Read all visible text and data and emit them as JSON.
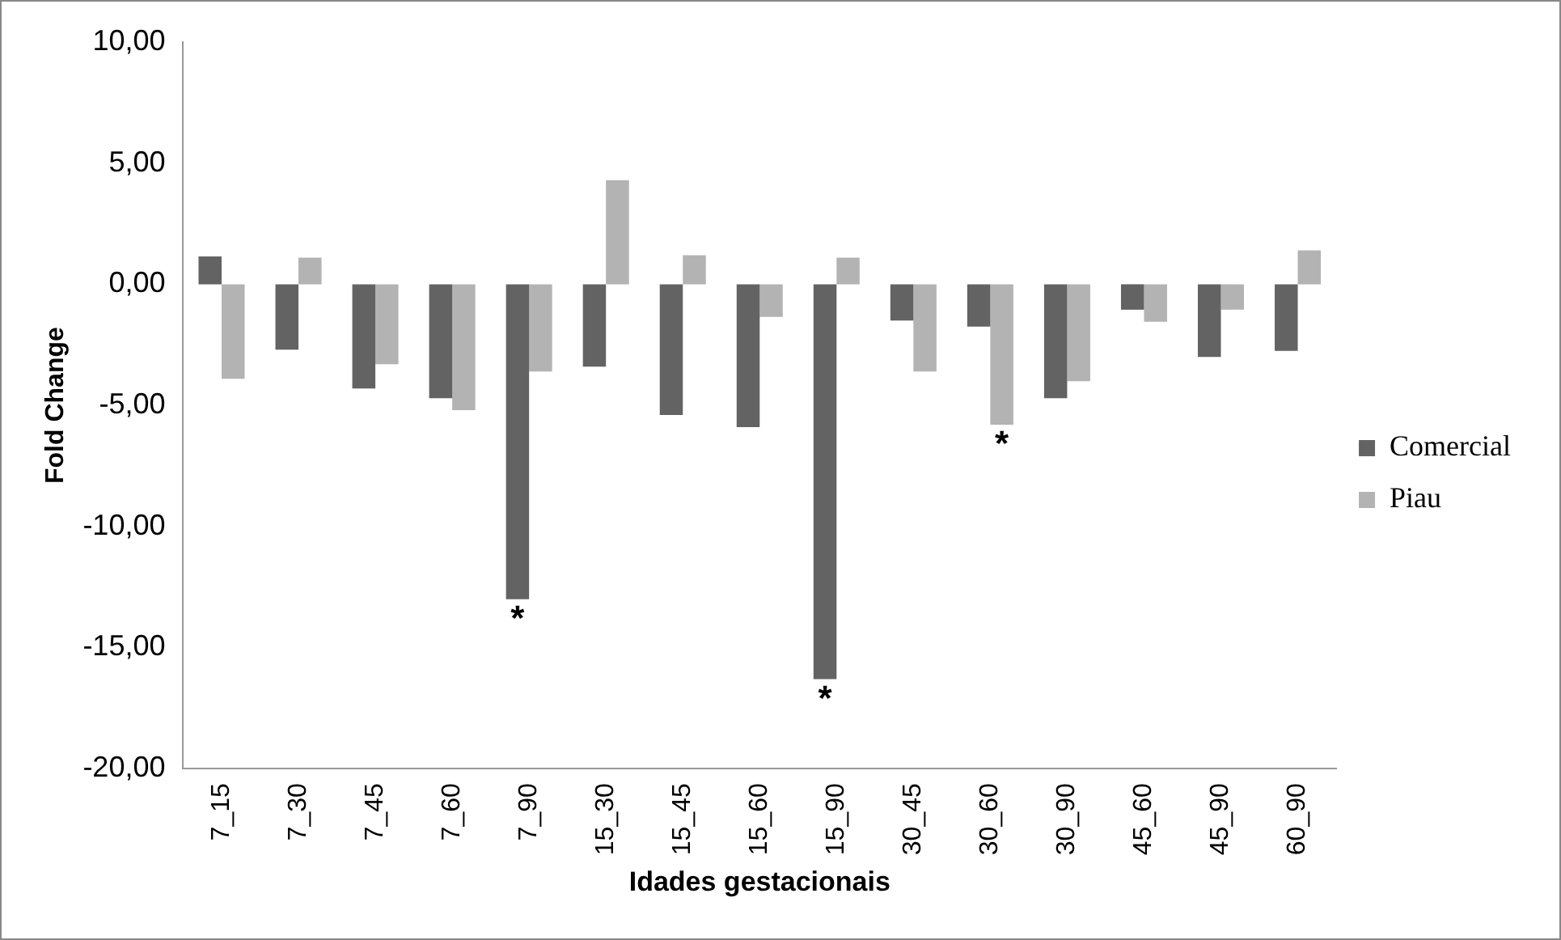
{
  "chart_data": {
    "type": "bar",
    "xlabel": "Idades gestacionais",
    "ylabel": "Fold Change",
    "categories": [
      "7_15",
      "7_30",
      "7_45",
      "7_60",
      "7_90",
      "15_30",
      "15_45",
      "15_60",
      "15_90",
      "30_45",
      "30_60",
      "30_90",
      "45_60",
      "45_90",
      "60_90"
    ],
    "series": [
      {
        "name": "Comercial",
        "color": "#636363",
        "values": [
          1.15,
          -2.7,
          -4.3,
          -4.7,
          -13.0,
          -3.4,
          -5.4,
          -5.9,
          -16.3,
          -1.5,
          -1.75,
          -4.7,
          -1.05,
          -3.0,
          -2.75
        ]
      },
      {
        "name": "Piau",
        "color": "#b3b3b3",
        "values": [
          -3.9,
          1.1,
          -3.3,
          -5.2,
          -3.6,
          4.3,
          1.2,
          -1.35,
          1.1,
          -3.6,
          -5.8,
          -4.0,
          -1.55,
          -1.05,
          1.4
        ]
      }
    ],
    "ylim": [
      -20,
      10
    ],
    "yticks": [
      {
        "value": 10,
        "label": "10,00"
      },
      {
        "value": 5,
        "label": "5,00"
      },
      {
        "value": 0,
        "label": "0,00"
      },
      {
        "value": -5,
        "label": "-5,00"
      },
      {
        "value": -10,
        "label": "-10,00"
      },
      {
        "value": -15,
        "label": "-15,00"
      },
      {
        "value": -20,
        "label": "-20,00"
      }
    ],
    "grid": false,
    "legend": "right",
    "annotations": [
      {
        "text": "*",
        "x": "7_90",
        "y": -13.0
      },
      {
        "text": "*",
        "x": "15_90",
        "y": -16.3
      },
      {
        "text": "*",
        "x": "30_60",
        "y": -5.8
      }
    ]
  }
}
